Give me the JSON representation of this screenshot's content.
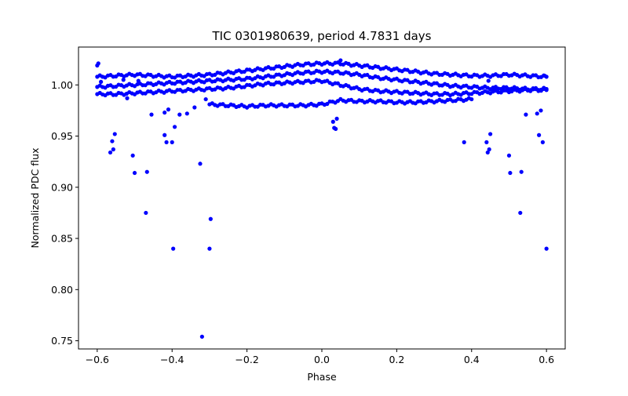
{
  "chart_data": {
    "type": "scatter",
    "title": "TIC 0301980639, period 4.7831 days",
    "xlabel": "Phase",
    "ylabel": "Normalized PDC flux",
    "xlim": [
      -0.65,
      0.65
    ],
    "ylim": [
      0.742,
      1.037
    ],
    "xticks": [
      -0.6,
      -0.4,
      -0.2,
      0.0,
      0.2,
      0.4,
      0.6
    ],
    "xtick_labels": [
      "−0.6",
      "−0.4",
      "−0.2",
      "0.0",
      "0.2",
      "0.4",
      "0.6"
    ],
    "yticks": [
      0.75,
      0.8,
      0.85,
      0.9,
      0.95,
      1.0
    ],
    "ytick_labels": [
      "0.75",
      "0.80",
      "0.85",
      "0.90",
      "0.95",
      "1.00"
    ],
    "marker_color": "#0000ff",
    "grid": false,
    "series": [
      {
        "name": "track_top",
        "points": [
          [
            -0.6,
            1.008
          ],
          [
            -0.55,
            1.009
          ],
          [
            -0.5,
            1.01
          ],
          [
            -0.45,
            1.009
          ],
          [
            -0.4,
            1.008
          ],
          [
            -0.35,
            1.009
          ],
          [
            -0.3,
            1.01
          ],
          [
            -0.25,
            1.012
          ],
          [
            -0.2,
            1.014
          ],
          [
            -0.15,
            1.016
          ],
          [
            -0.1,
            1.018
          ],
          [
            -0.05,
            1.02
          ],
          [
            0.0,
            1.021
          ],
          [
            0.05,
            1.021
          ],
          [
            0.1,
            1.019
          ],
          [
            0.15,
            1.017
          ],
          [
            0.2,
            1.015
          ],
          [
            0.25,
            1.013
          ],
          [
            0.3,
            1.011
          ],
          [
            0.35,
            1.01
          ],
          [
            0.4,
            1.009
          ],
          [
            0.45,
            1.009
          ],
          [
            0.5,
            1.01
          ],
          [
            0.55,
            1.009
          ],
          [
            0.6,
            1.008
          ]
        ]
      },
      {
        "name": "track_mid",
        "points": [
          [
            -0.6,
            0.998
          ],
          [
            -0.55,
            0.999
          ],
          [
            -0.5,
            1.0
          ],
          [
            -0.45,
            1.001
          ],
          [
            -0.4,
            1.002
          ],
          [
            -0.35,
            1.003
          ],
          [
            -0.3,
            1.004
          ],
          [
            -0.25,
            1.005
          ],
          [
            -0.2,
            1.006
          ],
          [
            -0.15,
            1.008
          ],
          [
            -0.1,
            1.01
          ],
          [
            -0.05,
            1.012
          ],
          [
            0.0,
            1.013
          ],
          [
            0.05,
            1.012
          ],
          [
            0.1,
            1.01
          ],
          [
            0.15,
            1.007
          ],
          [
            0.2,
            1.005
          ],
          [
            0.25,
            1.003
          ],
          [
            0.3,
            1.001
          ],
          [
            0.35,
            0.999
          ],
          [
            0.4,
            0.998
          ],
          [
            0.45,
            0.997
          ],
          [
            0.5,
            0.997
          ],
          [
            0.55,
            0.996
          ],
          [
            0.6,
            0.996
          ]
        ]
      },
      {
        "name": "track_low",
        "points": [
          [
            -0.6,
            0.991
          ],
          [
            -0.55,
            0.991
          ],
          [
            -0.5,
            0.992
          ],
          [
            -0.45,
            0.993
          ],
          [
            -0.4,
            0.994
          ],
          [
            -0.35,
            0.995
          ],
          [
            -0.3,
            0.996
          ],
          [
            -0.25,
            0.997
          ],
          [
            -0.2,
            0.999
          ],
          [
            -0.15,
            1.001
          ],
          [
            -0.1,
            1.002
          ],
          [
            -0.05,
            1.003
          ],
          [
            0.0,
            1.004
          ],
          [
            0.05,
            1.0
          ],
          [
            0.1,
            0.996
          ],
          [
            0.15,
            0.994
          ],
          [
            0.2,
            0.993
          ],
          [
            0.25,
            0.992
          ],
          [
            0.3,
            0.991
          ],
          [
            0.35,
            0.991
          ],
          [
            0.4,
            0.992
          ],
          [
            0.45,
            0.993
          ],
          [
            0.5,
            0.994
          ],
          [
            0.55,
            0.995
          ],
          [
            0.6,
            0.995
          ]
        ]
      },
      {
        "name": "track_bottom",
        "points": [
          [
            -0.3,
            0.981
          ],
          [
            -0.25,
            0.98
          ],
          [
            -0.2,
            0.979
          ],
          [
            -0.15,
            0.98
          ],
          [
            -0.1,
            0.98
          ],
          [
            -0.05,
            0.98
          ],
          [
            0.0,
            0.981
          ],
          [
            0.05,
            0.985
          ],
          [
            0.1,
            0.984
          ],
          [
            0.15,
            0.984
          ],
          [
            0.2,
            0.983
          ],
          [
            0.25,
            0.983
          ],
          [
            0.3,
            0.984
          ],
          [
            0.35,
            0.985
          ],
          [
            0.4,
            0.986
          ]
        ]
      },
      {
        "name": "outliers",
        "points": [
          [
            -0.6,
            1.019
          ],
          [
            -0.597,
            1.021
          ],
          [
            -0.59,
            1.003
          ],
          [
            -0.565,
            0.934
          ],
          [
            -0.56,
            0.945
          ],
          [
            -0.557,
            0.937
          ],
          [
            -0.553,
            0.952
          ],
          [
            -0.53,
            1.005
          ],
          [
            -0.52,
            0.987
          ],
          [
            -0.505,
            0.931
          ],
          [
            -0.5,
            0.914
          ],
          [
            -0.49,
            1.004
          ],
          [
            -0.47,
            0.875
          ],
          [
            -0.467,
            0.915
          ],
          [
            -0.455,
            0.971
          ],
          [
            -0.42,
            0.973
          ],
          [
            -0.42,
            0.951
          ],
          [
            -0.415,
            0.944
          ],
          [
            -0.41,
            0.976
          ],
          [
            -0.4,
            0.944
          ],
          [
            -0.397,
            0.84
          ],
          [
            -0.393,
            0.959
          ],
          [
            -0.38,
            0.971
          ],
          [
            -0.36,
            0.972
          ],
          [
            -0.34,
            0.978
          ],
          [
            -0.325,
            0.923
          ],
          [
            -0.32,
            0.754
          ],
          [
            -0.31,
            0.986
          ],
          [
            -0.3,
            0.84
          ],
          [
            -0.297,
            0.869
          ],
          [
            0.03,
            0.964
          ],
          [
            0.033,
            0.958
          ],
          [
            0.037,
            0.957
          ],
          [
            0.04,
            0.967
          ],
          [
            0.045,
            1.022
          ],
          [
            0.05,
            1.024
          ],
          [
            0.38,
            0.944
          ],
          [
            0.44,
            0.944
          ],
          [
            0.443,
            0.934
          ],
          [
            0.447,
            0.937
          ],
          [
            0.45,
            0.952
          ],
          [
            0.445,
            1.004
          ],
          [
            0.46,
            0.996
          ],
          [
            0.5,
            0.931
          ],
          [
            0.503,
            0.914
          ],
          [
            0.53,
            0.875
          ],
          [
            0.533,
            0.915
          ],
          [
            0.545,
            0.971
          ],
          [
            0.575,
            0.972
          ],
          [
            0.58,
            0.951
          ],
          [
            0.585,
            0.975
          ],
          [
            0.59,
            0.944
          ],
          [
            0.595,
            1.009
          ],
          [
            0.6,
            0.84
          ],
          [
            0.593,
            0.997
          ]
        ]
      }
    ]
  }
}
